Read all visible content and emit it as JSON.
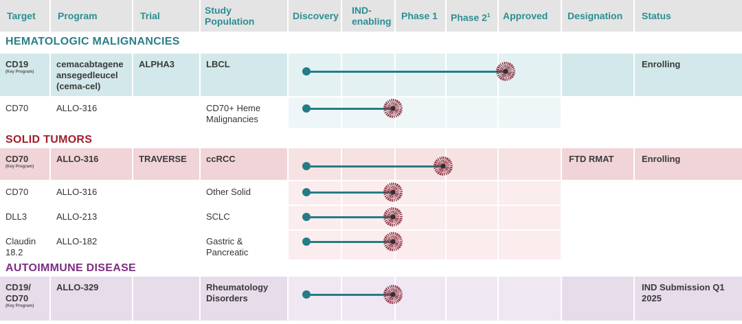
{
  "header": {
    "target": "Target",
    "program": "Program",
    "trial": "Trial",
    "study_population_line1": "Study",
    "study_population_line2": "Population",
    "discovery": "Discovery",
    "ind_line1": "IND-",
    "ind_line2": "enabling",
    "phase1": "Phase 1",
    "phase2": "Phase 2",
    "phase2_sup": "1",
    "approved": "Approved",
    "designation": "Designation",
    "status": "Status"
  },
  "colors": {
    "teal": "#2a8e93",
    "solid_red": "#a11d2a",
    "autoimmune_purple": "#7b2e83"
  },
  "sections": [
    {
      "title": "HEMATOLOGIC MALIGNANCIES",
      "rows": [
        {
          "target": "CD19",
          "target_sub": "(Key Program)",
          "program": "cemacabtagene ansegedleucel (cema-cel)",
          "trial": "ALPHA3",
          "population": "LBCL",
          "designation": "",
          "status": "Enrolling",
          "progress_stage": 3.6
        },
        {
          "target": "CD70",
          "target_sub": "",
          "program": "ALLO-316",
          "trial": "",
          "population": "CD70+ Heme Malignancies",
          "designation": "",
          "status": "",
          "progress_stage": 1.5
        }
      ]
    },
    {
      "title": "SOLID TUMORS",
      "rows": [
        {
          "target": "CD70",
          "target_sub": "(Key Program)",
          "program": "ALLO-316",
          "trial": "TRAVERSE",
          "population": "ccRCC",
          "designation": "FTD RMAT",
          "status": "Enrolling",
          "progress_stage": 2.45
        },
        {
          "target": "CD70",
          "target_sub": "",
          "program": "ALLO-316",
          "trial": "",
          "population": "Other Solid",
          "designation": "",
          "status": "",
          "progress_stage": 1.5
        },
        {
          "target": "DLL3",
          "target_sub": "",
          "program": "ALLO-213",
          "trial": "",
          "population": "SCLC",
          "designation": "",
          "status": "",
          "progress_stage": 1.5
        },
        {
          "target": "Claudin 18.2",
          "target_sub": "",
          "program": "ALLO-182",
          "trial": "",
          "population": "Gastric & Pancreatic",
          "designation": "",
          "status": "",
          "progress_stage": 1.5
        }
      ]
    },
    {
      "title": "AUTOIMMUNE DISEASE",
      "rows": [
        {
          "target": "CD19/ CD70",
          "target_sub": "(Key Program)",
          "program": "ALLO-329",
          "trial": "",
          "population": "Rheumatology Disorders",
          "designation": "",
          "status": "IND Submission Q1 2025",
          "progress_stage": 1.5
        }
      ]
    }
  ]
}
